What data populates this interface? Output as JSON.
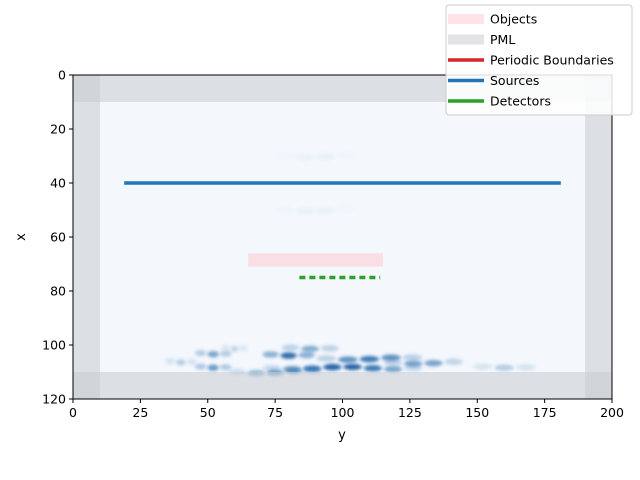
{
  "chart_data": {
    "type": "heatmap",
    "title": "",
    "xlabel": "y",
    "ylabel": "x",
    "xlim": [
      0,
      200
    ],
    "ylim": [
      120,
      0
    ],
    "y_axis_inverted": true,
    "xticks": [
      0,
      25,
      50,
      75,
      100,
      125,
      150,
      175,
      200
    ],
    "yticks": [
      0,
      20,
      40,
      60,
      80,
      100,
      120
    ],
    "grid": false,
    "legend_placement": "top-right",
    "colormap": "Blues",
    "pml_regions": [
      {
        "y": [
          0,
          10
        ],
        "x": [
          0,
          120
        ]
      },
      {
        "y": [
          190,
          200
        ],
        "x": [
          0,
          120
        ]
      },
      {
        "y": [
          0,
          200
        ],
        "x": [
          0,
          10
        ]
      },
      {
        "y": [
          0,
          200
        ],
        "x": [
          110,
          120
        ]
      }
    ],
    "objects": [
      {
        "y": [
          65,
          115
        ],
        "x": [
          66,
          71
        ]
      }
    ],
    "sources": [
      {
        "y": [
          19,
          181
        ],
        "x": 40
      }
    ],
    "detectors": [
      {
        "y": [
          84,
          114
        ],
        "x": 75
      }
    ],
    "periodic_boundaries": [],
    "field_waves": [
      {
        "y_center": 88,
        "x": 101,
        "amp": 0.45,
        "y_span": 22
      },
      {
        "y_center": 80,
        "x": 103.5,
        "amp": 0.85,
        "y_span": 20
      },
      {
        "y_center": 110,
        "x": 105,
        "amp": 0.75,
        "y_span": 40
      },
      {
        "y_center": 130,
        "x": 106.5,
        "amp": 0.55,
        "y_span": 30
      },
      {
        "y_center": 100,
        "x": 108.5,
        "amp": 0.9,
        "y_span": 60
      },
      {
        "y_center": 75,
        "x": 110,
        "amp": 0.5,
        "y_span": 35
      },
      {
        "y_center": 52,
        "x": 103,
        "amp": 0.5,
        "y_span": 14
      },
      {
        "y_center": 52,
        "x": 108,
        "amp": 0.55,
        "y_span": 14
      },
      {
        "y_center": 40,
        "x": 106,
        "amp": 0.25,
        "y_span": 12
      },
      {
        "y_center": 160,
        "x": 108,
        "amp": 0.25,
        "y_span": 24
      },
      {
        "y_center": 60,
        "x": 101,
        "amp": 0.2,
        "y_span": 10
      },
      {
        "y_center": 90,
        "x": 30,
        "amp": 0.05,
        "y_span": 30
      },
      {
        "y_center": 90,
        "x": 50,
        "amp": 0.05,
        "y_span": 30
      }
    ],
    "colors": {
      "pml": "#c8ccd1",
      "object": "#ffc0c8",
      "source": "#1f77b4",
      "detector": "#2ca02c",
      "periodic": "#d62728",
      "background": "#f4f8fd",
      "field": "#08519c"
    },
    "legend": [
      {
        "label": "Objects",
        "kind": "object"
      },
      {
        "label": "PML",
        "kind": "pml"
      },
      {
        "label": "Periodic Boundaries",
        "kind": "periodic"
      },
      {
        "label": "Sources",
        "kind": "source"
      },
      {
        "label": "Detectors",
        "kind": "detector"
      }
    ]
  }
}
